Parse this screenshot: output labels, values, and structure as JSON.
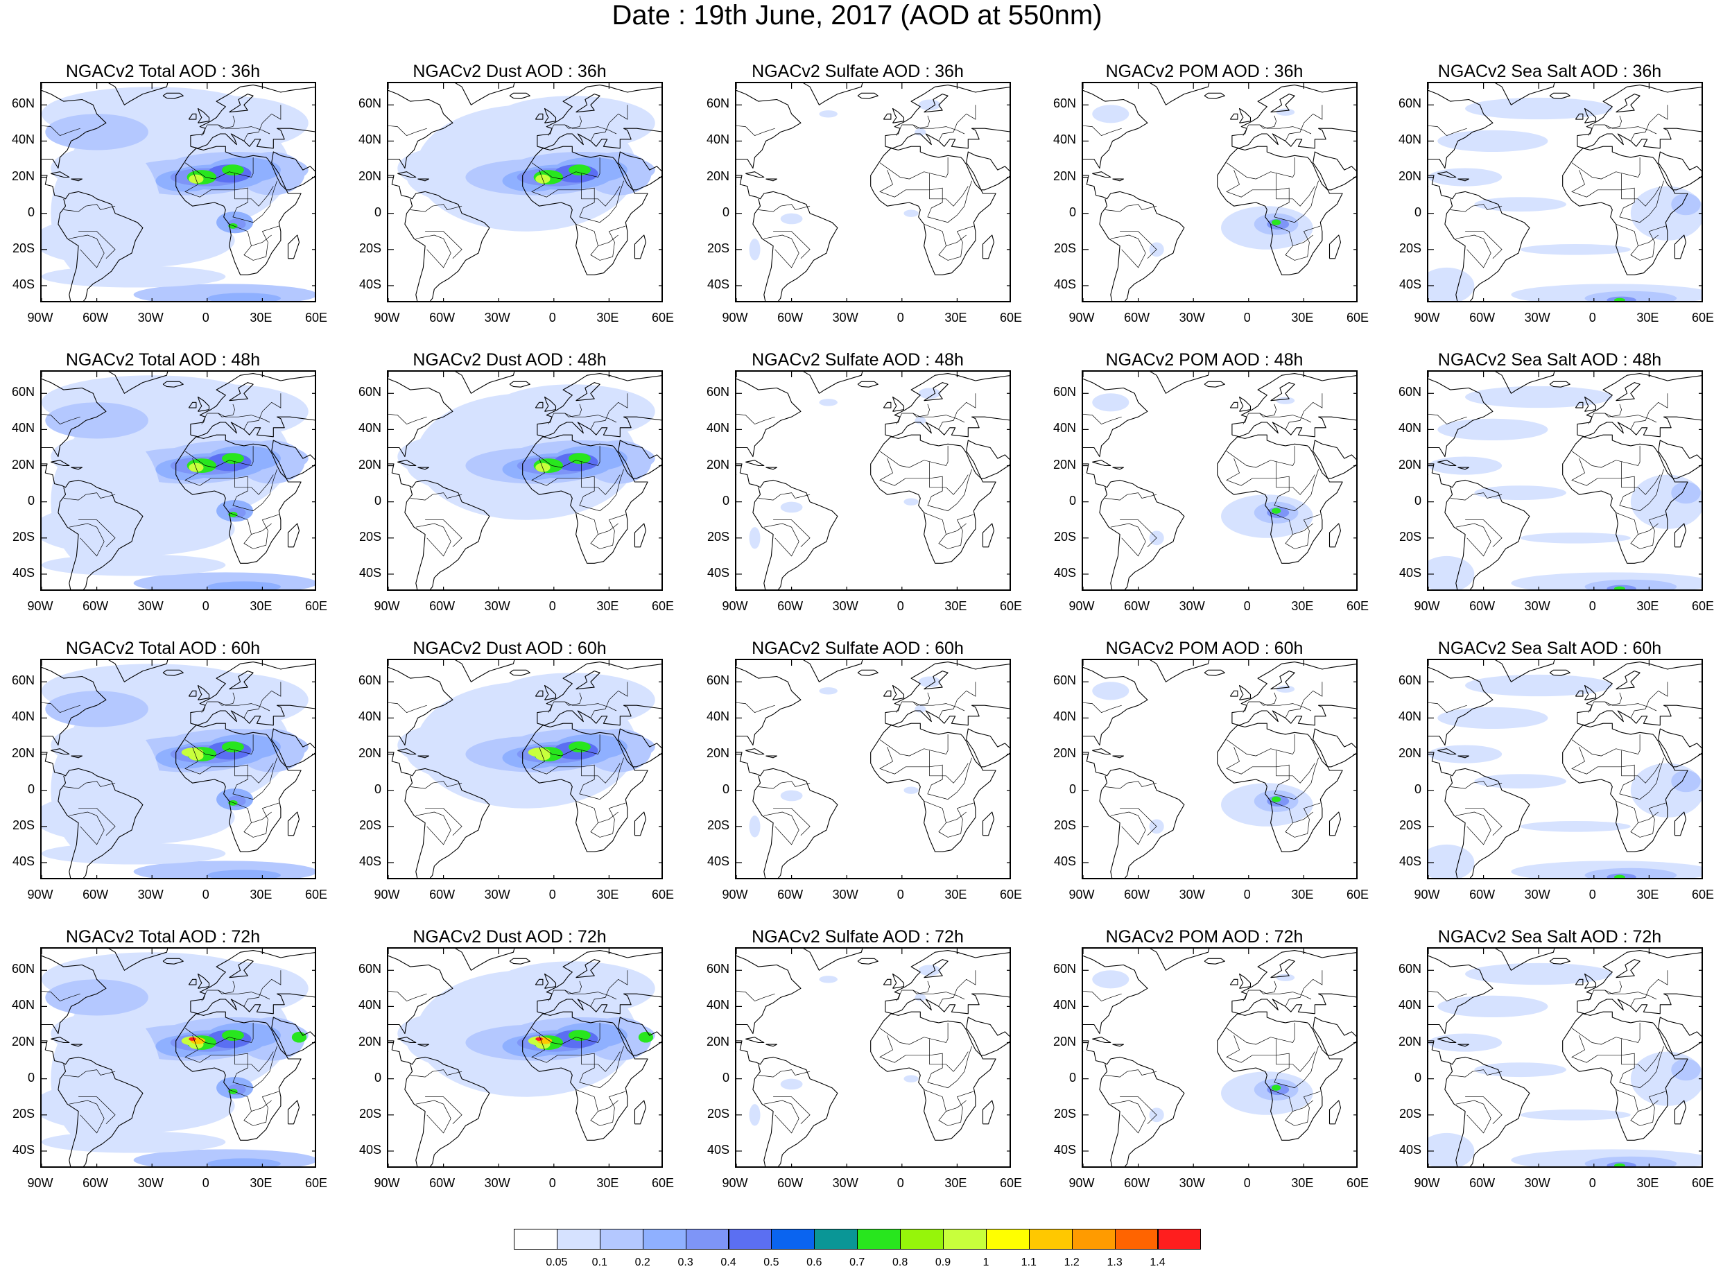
{
  "title": "Date : 19th June, 2017 (AOD at 550nm)",
  "lat_labels": [
    "60N",
    "40N",
    "20N",
    "0",
    "20S",
    "40S"
  ],
  "lon_labels": [
    "90W",
    "60W",
    "30W",
    "0",
    "30E",
    "60E"
  ],
  "columns": [
    {
      "key": "total",
      "name": "NGACv2 Total AOD"
    },
    {
      "key": "dust",
      "name": "NGACv2 Dust AOD"
    },
    {
      "key": "sulfate",
      "name": "NGACv2 Sulfate AOD"
    },
    {
      "key": "pom",
      "name": "NGACv2 POM AOD"
    },
    {
      "key": "seasalt",
      "name": "NGACv2 Sea Salt AOD"
    }
  ],
  "panels": [
    [
      "NGACv2 Total AOD : 36h",
      "NGACv2 Dust AOD : 36h",
      "NGACv2 Sulfate AOD : 36h",
      "NGACv2 POM AOD : 36h",
      "NGACv2 Sea Salt AOD : 36h"
    ],
    [
      "NGACv2 Total AOD : 48h",
      "NGACv2 Dust AOD : 48h",
      "NGACv2 Sulfate AOD : 48h",
      "NGACv2 POM AOD : 48h",
      "NGACv2 Sea Salt AOD : 48h"
    ],
    [
      "NGACv2 Total AOD : 60h",
      "NGACv2 Dust AOD : 60h",
      "NGACv2 Sulfate AOD : 60h",
      "NGACv2 POM AOD : 60h",
      "NGACv2 Sea Salt AOD : 60h"
    ],
    [
      "NGACv2 Total AOD : 72h",
      "NGACv2 Dust AOD : 72h",
      "NGACv2 Sulfate AOD : 72h",
      "NGACv2 POM AOD : 72h",
      "NGACv2 Sea Salt  AOD : 72h"
    ]
  ],
  "colorbar": {
    "labels": [
      "0.05",
      "0.1",
      "0.2",
      "0.3",
      "0.4",
      "0.5",
      "0.6",
      "0.7",
      "0.8",
      "0.9",
      "1",
      "1.1",
      "1.2",
      "1.3",
      "1.4"
    ],
    "colors": [
      "#ffffff",
      "#d6e2ff",
      "#b4c8ff",
      "#8fb0ff",
      "#7e95f7",
      "#5b6ff2",
      "#0a64f0",
      "#0a9696",
      "#28e61e",
      "#96f50a",
      "#c8ff3c",
      "#ffff00",
      "#ffc800",
      "#ff9b00",
      "#ff6400",
      "#ff1e1e"
    ]
  },
  "colors": {
    "land_outline": "#000000",
    "low_aod": "#d6e2ff"
  }
}
